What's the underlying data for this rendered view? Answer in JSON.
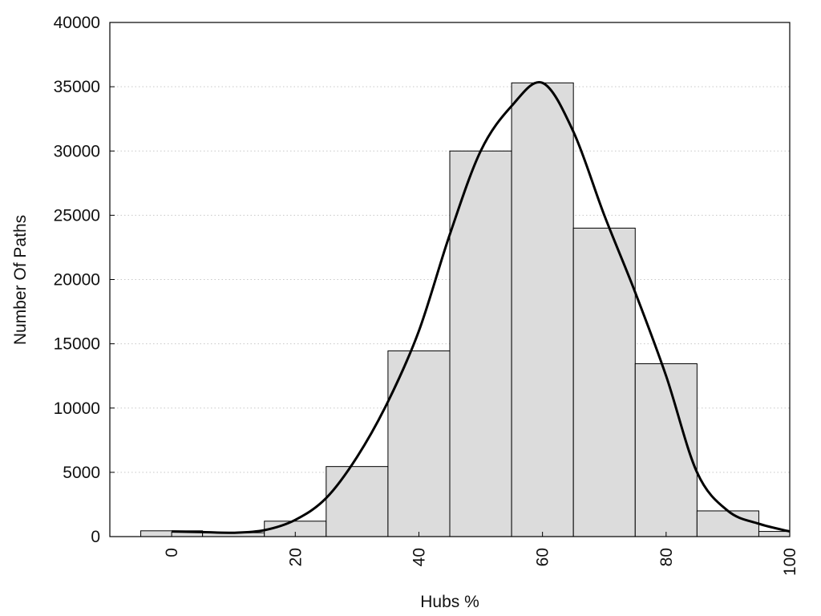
{
  "chart_data": {
    "type": "bar",
    "xlabel": "Hubs %",
    "ylabel": "Number Of Paths",
    "xlim": [
      -10,
      100
    ],
    "ylim": [
      0,
      40000
    ],
    "x_ticks": [
      0,
      20,
      40,
      60,
      80,
      100
    ],
    "y_ticks": [
      0,
      5000,
      10000,
      15000,
      20000,
      25000,
      30000,
      35000,
      40000
    ],
    "grid": "horizontal dotted",
    "bar_width": 10,
    "bars": {
      "x": [
        0,
        10,
        20,
        30,
        40,
        50,
        60,
        70,
        80,
        90,
        100
      ],
      "values": [
        450,
        300,
        1200,
        5450,
        14450,
        30000,
        35300,
        24000,
        13450,
        2000,
        400
      ]
    },
    "curve": {
      "x": [
        0,
        5,
        10,
        15,
        20,
        25,
        30,
        35,
        40,
        45,
        50,
        55,
        60,
        65,
        70,
        75,
        80,
        85,
        90,
        95,
        100
      ],
      "values": [
        400,
        350,
        300,
        500,
        1300,
        3000,
        6200,
        10500,
        16000,
        23500,
        30000,
        33500,
        35300,
        31500,
        25000,
        19000,
        12500,
        5000,
        2000,
        1000,
        400
      ]
    },
    "colors": {
      "bar_fill": "#dcdcdc",
      "bar_stroke": "#000000",
      "curve": "#000000",
      "grid": "#c8c8c8"
    }
  }
}
